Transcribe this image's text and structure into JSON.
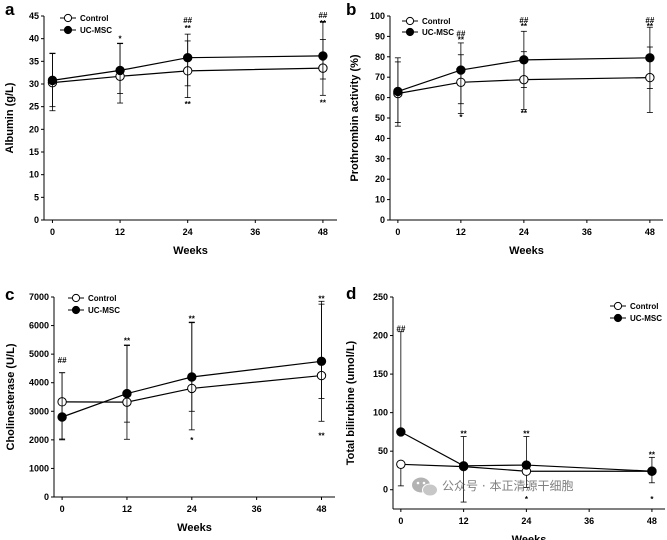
{
  "chart_data": [
    {
      "type": "line",
      "panel": "a",
      "xlabel": "Weeks",
      "ylabel": "Albumin (g/L)",
      "x": [
        0,
        12,
        24,
        48
      ],
      "xticks": [
        0,
        12,
        24,
        36,
        48
      ],
      "xlim": [
        -1.5,
        50.5
      ],
      "ylim": [
        0,
        45
      ],
      "yticks": [
        0,
        5,
        10,
        15,
        20,
        25,
        30,
        35,
        40,
        45
      ],
      "series": [
        {
          "name": "Control",
          "marker": "open",
          "values": [
            30.3,
            31.7,
            32.9,
            33.5
          ],
          "err_up": [
            6.5,
            7.2,
            6.6,
            6.3
          ],
          "err_down": [
            6.2,
            5.9,
            5.9,
            6.0
          ]
        },
        {
          "name": "UC-MSC",
          "marker": "filled",
          "values": [
            30.8,
            33.0,
            35.8,
            36.2
          ],
          "err_up": [
            5.9,
            6.0,
            5.2,
            7.5
          ],
          "err_down": [
            5.8,
            5.1,
            6.2,
            5.1
          ]
        }
      ],
      "legend": {
        "position": "top-left",
        "entries": [
          "Control",
          "UC-MSC"
        ]
      },
      "annotations": [
        {
          "x": 12,
          "y": 40.0,
          "text": "*"
        },
        {
          "x": 24,
          "y": 44.1,
          "text": "##"
        },
        {
          "x": 24,
          "y": 42.3,
          "text": "**"
        },
        {
          "x": 24,
          "y": 25.6,
          "text": "**"
        },
        {
          "x": 48,
          "y": 45.2,
          "text": "##"
        },
        {
          "x": 48,
          "y": 43.5,
          "text": "**"
        },
        {
          "x": 48,
          "y": 25.9,
          "text": "**"
        }
      ]
    },
    {
      "type": "line",
      "panel": "b",
      "xlabel": "Weeks",
      "ylabel": "Prothrombin activity (%)",
      "x": [
        0,
        12,
        24,
        48
      ],
      "xticks": [
        0,
        12,
        24,
        36,
        48
      ],
      "xlim": [
        -1.5,
        50.5
      ],
      "ylim": [
        0,
        100
      ],
      "yticks": [
        0,
        10,
        20,
        30,
        40,
        50,
        60,
        70,
        80,
        90,
        100
      ],
      "series": [
        {
          "name": "Control",
          "marker": "open",
          "values": [
            62.0,
            67.5,
            68.8,
            69.8
          ],
          "err_up": [
            17.5,
            13.5,
            13.7,
            15.0
          ],
          "err_down": [
            16.0,
            15.3,
            14.6,
            17.1
          ]
        },
        {
          "name": "UC-MSC",
          "marker": "filled",
          "values": [
            63.0,
            73.5,
            78.5,
            79.5
          ],
          "err_up": [
            14.5,
            13.3,
            14.0,
            15.0
          ],
          "err_down": [
            15.2,
            16.5,
            13.5,
            15.0
          ]
        }
      ],
      "legend": {
        "position": "top-left",
        "entries": [
          "Control",
          "UC-MSC"
        ]
      },
      "annotations": [
        {
          "x": 12,
          "y": 91.5,
          "text": "##"
        },
        {
          "x": 12,
          "y": 88.5,
          "text": "**"
        },
        {
          "x": 12,
          "y": 50.5,
          "text": "*"
        },
        {
          "x": 24,
          "y": 98.0,
          "text": "##"
        },
        {
          "x": 24,
          "y": 95.0,
          "text": "**"
        },
        {
          "x": 24,
          "y": 52.5,
          "text": "**"
        },
        {
          "x": 48,
          "y": 98.0,
          "text": "##"
        },
        {
          "x": 48,
          "y": 95.0,
          "text": "**"
        }
      ]
    },
    {
      "type": "line",
      "panel": "c",
      "xlabel": "Weeks",
      "ylabel": "Cholinesterase (U/L)",
      "x": [
        0,
        12,
        24,
        48
      ],
      "xticks": [
        0,
        12,
        24,
        36,
        48
      ],
      "xlim": [
        -1.5,
        50.5
      ],
      "ylim": [
        0,
        7000
      ],
      "yticks": [
        0,
        1000,
        2000,
        3000,
        4000,
        5000,
        6000,
        7000
      ],
      "series": [
        {
          "name": "Control",
          "marker": "open",
          "values": [
            3330,
            3320,
            3800,
            4250
          ],
          "err_up": [
            1020,
            1980,
            2300,
            2500
          ],
          "err_down": [
            1300,
            1300,
            1450,
            1600
          ]
        },
        {
          "name": "UC-MSC",
          "marker": "filled",
          "values": [
            2800,
            3620,
            4200,
            4750
          ],
          "err_up": [
            1550,
            1700,
            1920,
            2100
          ],
          "err_down": [
            800,
            1000,
            1200,
            1300
          ]
        }
      ],
      "legend": {
        "position": "top-left",
        "entries": [
          "Control",
          "UC-MSC"
        ]
      },
      "annotations": [
        {
          "x": 0,
          "y": 4800,
          "text": "##"
        },
        {
          "x": 12,
          "y": 5480,
          "text": "**"
        },
        {
          "x": 24,
          "y": 6240,
          "text": "**"
        },
        {
          "x": 24,
          "y": 2000,
          "text": "*"
        },
        {
          "x": 48,
          "y": 6950,
          "text": "**"
        },
        {
          "x": 48,
          "y": 2150,
          "text": "**"
        }
      ]
    },
    {
      "type": "line",
      "panel": "d",
      "xlabel": "Weeks",
      "ylabel": "Total bilirubine (umol/L)",
      "x": [
        0,
        12,
        24,
        48
      ],
      "xticks": [
        0,
        12,
        24,
        36,
        48
      ],
      "xlim": [
        -1.5,
        50.5
      ],
      "ylim": [
        -25,
        250
      ],
      "yticks": [
        0,
        50,
        100,
        150,
        200,
        250
      ],
      "series": [
        {
          "name": "Control",
          "marker": "open",
          "values": [
            33,
            30,
            24,
            24
          ],
          "err_up": [
            0,
            0,
            0,
            0
          ],
          "err_down": [
            28,
            0,
            21,
            0
          ]
        },
        {
          "name": "UC-MSC",
          "marker": "filled",
          "values": [
            75,
            31,
            32,
            24
          ],
          "err_up": [
            130,
            38,
            37,
            18
          ],
          "err_down": [
            0,
            47,
            0,
            15
          ]
        }
      ],
      "legend": {
        "position": "top-right",
        "entries": [
          "Control",
          "UC-MSC"
        ]
      },
      "annotations": [
        {
          "x": 0,
          "y": 209,
          "text": "##"
        },
        {
          "x": 12,
          "y": 73,
          "text": "**"
        },
        {
          "x": 24,
          "y": 73,
          "text": "**"
        },
        {
          "x": 24,
          "y": -12,
          "text": "*"
        },
        {
          "x": 48,
          "y": 46,
          "text": "**"
        },
        {
          "x": 48,
          "y": -12,
          "text": "*"
        }
      ]
    }
  ],
  "watermark": {
    "text": "公众号 · 本正清源干细胞",
    "icon": "wechat-icon"
  }
}
